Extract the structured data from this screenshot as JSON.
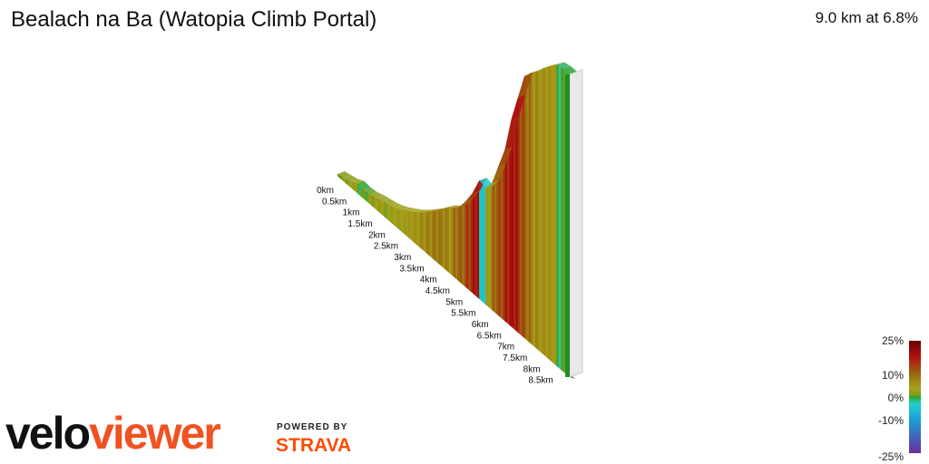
{
  "header": {
    "title": "Bealach na Ba (Watopia Climb Portal)",
    "summary": "9.0 km at 6.8%"
  },
  "branding": {
    "logo_part1": "velo",
    "logo_part2": "viewer",
    "powered_by": "POWERED BY",
    "strava": "STRAVA",
    "logo_colors": {
      "velo": "#111111",
      "viewer": "#f05222",
      "strava": "#fc4c02"
    }
  },
  "chart_data": {
    "type": "area",
    "title": "Bealach na Ba (Watopia Climb Portal)",
    "distance_km": 9.0,
    "average_gradient_pct": 6.8,
    "distance_ticks": [
      "0km",
      "0.5km",
      "1km",
      "1.5km",
      "2km",
      "2.5km",
      "3km",
      "3.5km",
      "4km",
      "4.5km",
      "5km",
      "5.5km",
      "6km",
      "6.5km",
      "7km",
      "7.5km",
      "8km",
      "8.5km"
    ],
    "distance_tick_values": [
      0,
      0.5,
      1,
      1.5,
      2,
      2.5,
      3,
      3.5,
      4,
      4.5,
      5,
      5.5,
      6,
      6.5,
      7,
      7.5,
      8,
      8.5
    ],
    "elevation_profile_m": {
      "x_km": [
        0,
        0.25,
        0.5,
        0.75,
        1,
        1.25,
        1.5,
        1.75,
        2,
        2.25,
        2.5,
        2.75,
        3,
        3.25,
        3.5,
        3.75,
        4,
        4.25,
        4.5,
        4.75,
        5,
        5.25,
        5.5,
        5.75,
        6,
        6.25,
        6.5,
        6.75,
        7,
        7.25,
        7.5,
        7.75,
        8,
        8.25,
        8.5,
        8.75,
        9
      ],
      "elevation_m": [
        0,
        2,
        4,
        8,
        7,
        8,
        11,
        13,
        15,
        18,
        22,
        27,
        32,
        38,
        45,
        52,
        60,
        68,
        74,
        82,
        95,
        110,
        130,
        128,
        140,
        165,
        190,
        230,
        260,
        290,
        300,
        308,
        318,
        326,
        334,
        336,
        336
      ]
    },
    "segment_gradients_pct": [
      2,
      3,
      4,
      0,
      1,
      3,
      4,
      3,
      4,
      5,
      5,
      6,
      7,
      8,
      9,
      10,
      9,
      8,
      11,
      12,
      15,
      18,
      -4,
      6,
      12,
      14,
      17,
      18,
      14,
      11,
      8,
      7,
      7,
      6,
      -1,
      0
    ],
    "color_scale": {
      "labels": [
        "25%",
        "10%",
        "0%",
        "-10%",
        "-25%"
      ],
      "values": [
        25,
        10,
        0,
        -10,
        -25
      ],
      "stops": [
        {
          "value": 25,
          "color": "#6b0000"
        },
        {
          "value": 18,
          "color": "#b01010"
        },
        {
          "value": 12,
          "color": "#9a6a10"
        },
        {
          "value": 6,
          "color": "#a7a21a"
        },
        {
          "value": 2,
          "color": "#8a9a18"
        },
        {
          "value": 0,
          "color": "#2aa32a"
        },
        {
          "value": -3,
          "color": "#22d0d0"
        },
        {
          "value": -10,
          "color": "#1a9fd9"
        },
        {
          "value": -25,
          "color": "#6a2d9c"
        }
      ]
    }
  }
}
